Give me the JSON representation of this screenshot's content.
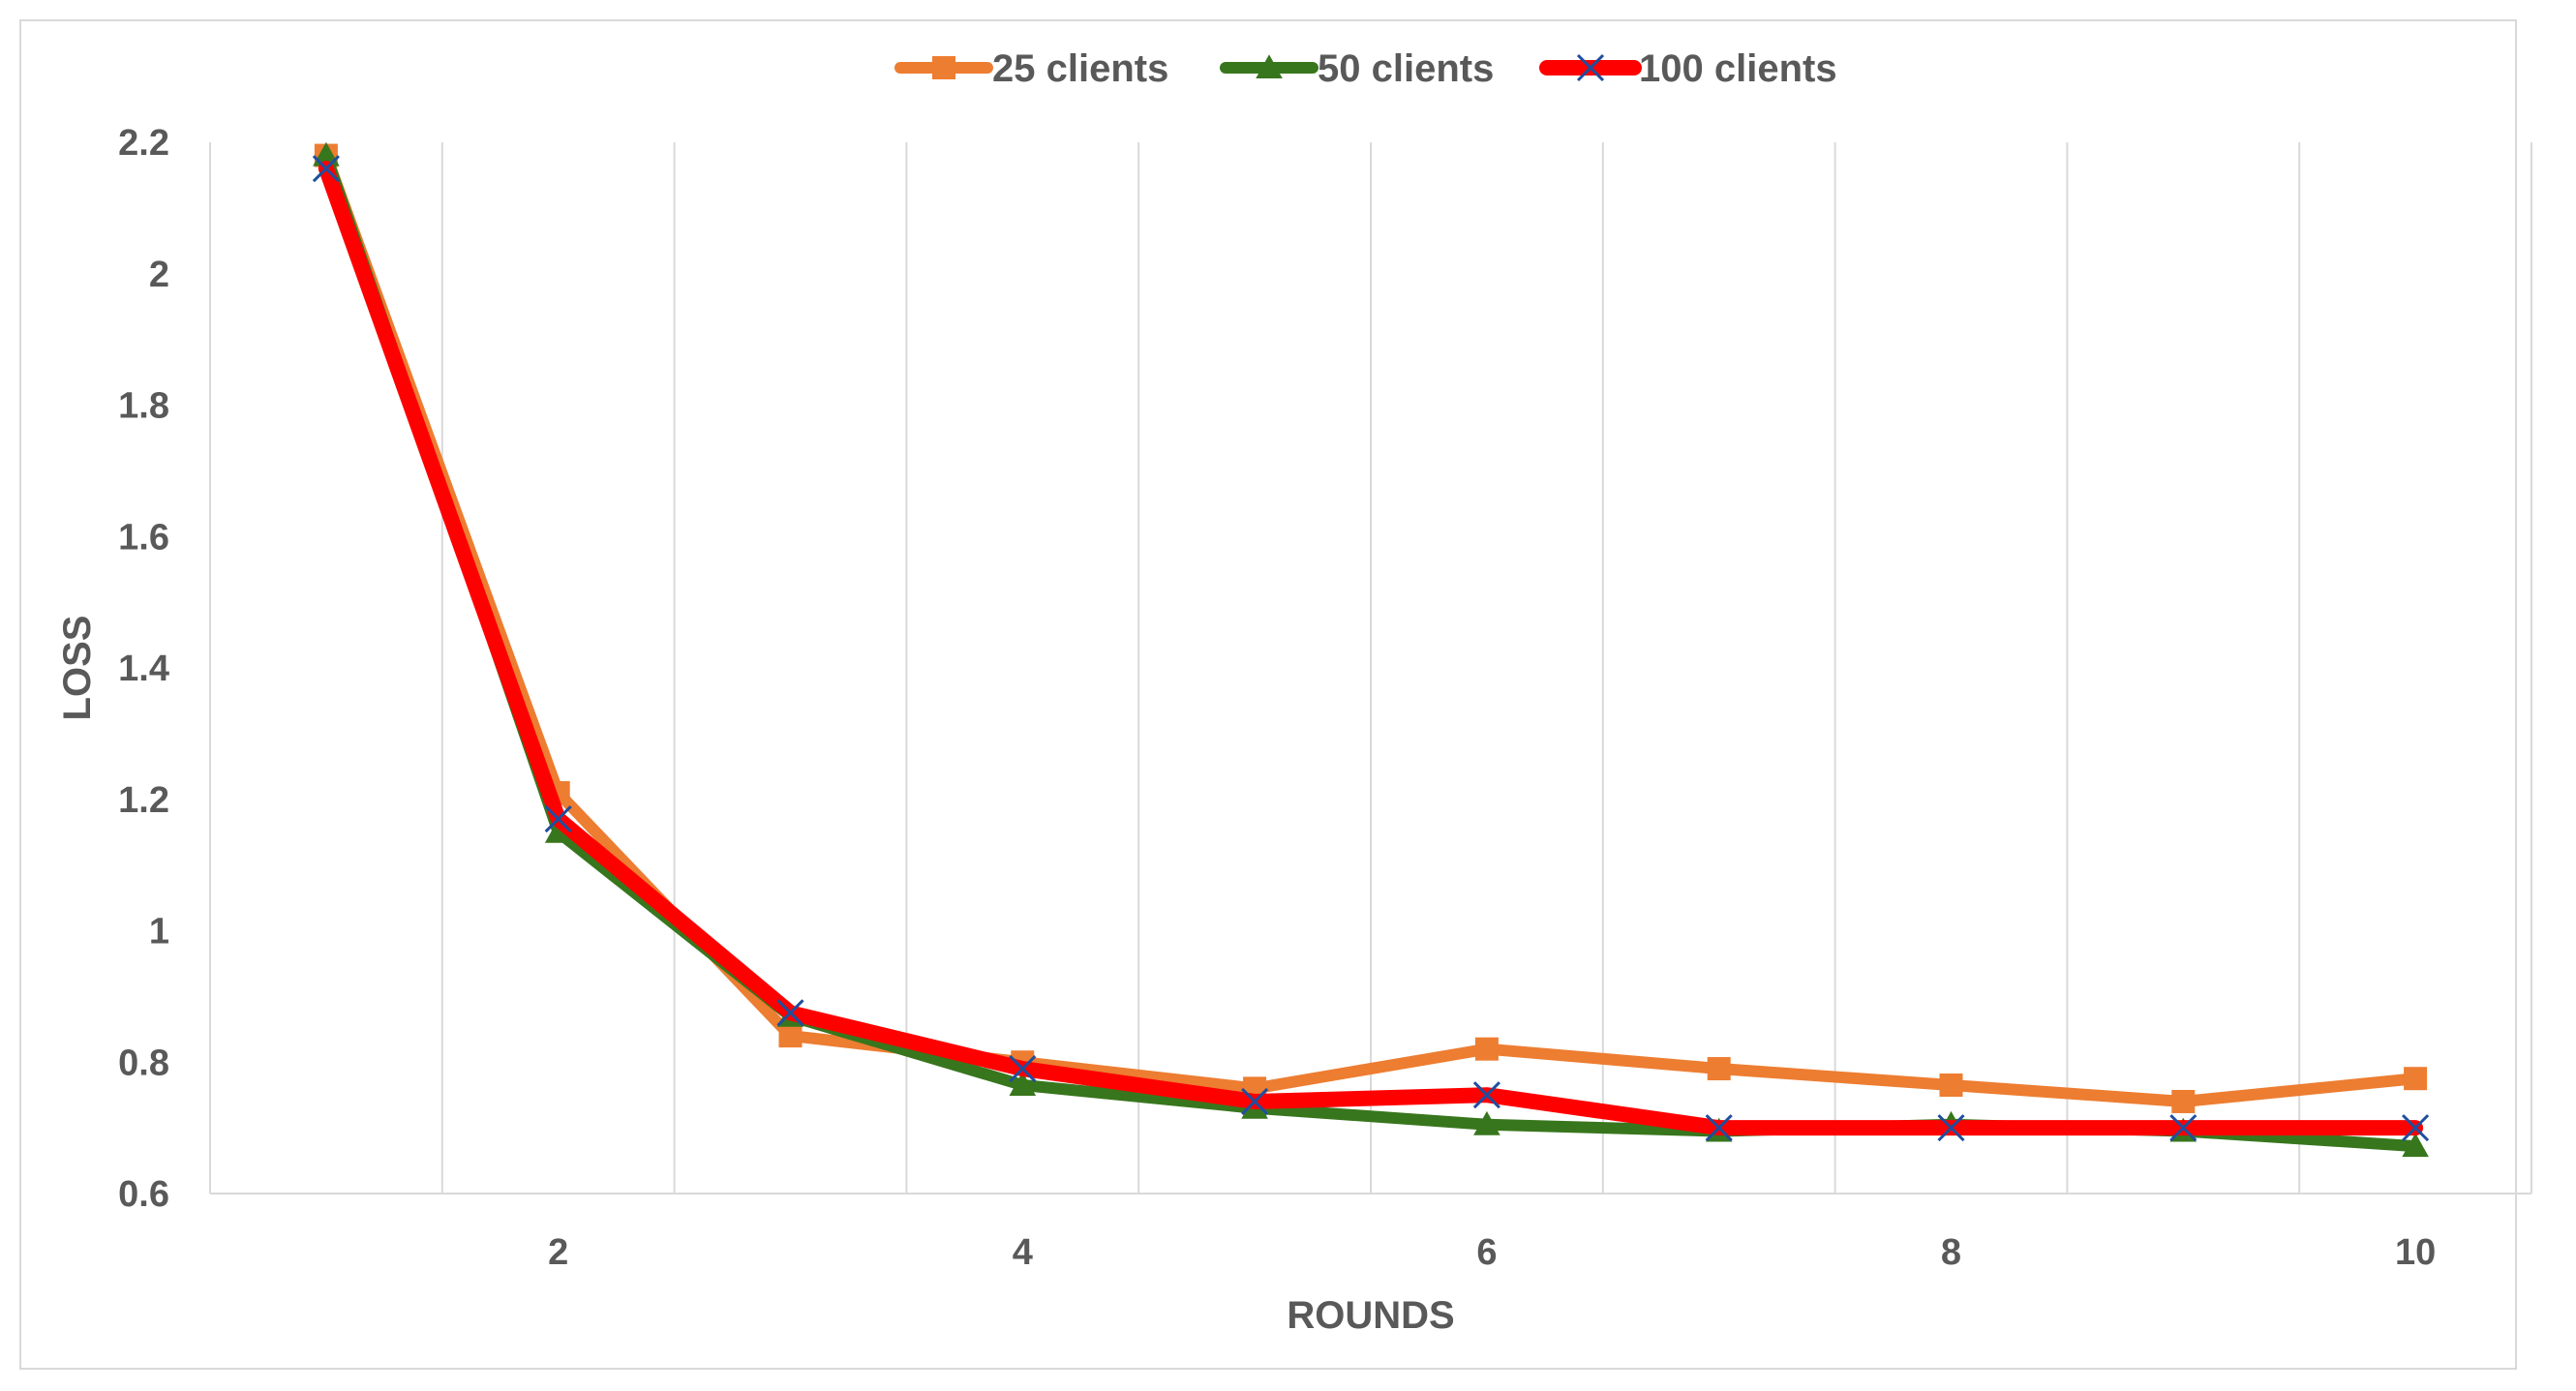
{
  "chart_data": {
    "type": "line",
    "title": "",
    "xlabel": "ROUNDS",
    "ylabel": "LOSS",
    "x": [
      1,
      2,
      3,
      4,
      5,
      6,
      7,
      8,
      9,
      10
    ],
    "xlim": [
      0.5,
      10.5
    ],
    "xticks": [
      2,
      4,
      6,
      8,
      10
    ],
    "ylim": [
      0.6,
      2.2
    ],
    "yticks": [
      0.6,
      0.8,
      1,
      1.2,
      1.4,
      1.6,
      1.8,
      2,
      2.2
    ],
    "grid": "vertical",
    "legend_position": "top-center",
    "series": [
      {
        "name": "25 clients",
        "color": "#ED7D31",
        "marker": "square",
        "values": [
          2.18,
          1.21,
          0.84,
          0.8,
          0.76,
          0.82,
          0.79,
          0.765,
          0.74,
          0.775
        ]
      },
      {
        "name": "50 clients",
        "color": "#38761D",
        "marker": "triangle",
        "values": [
          2.18,
          1.15,
          0.87,
          0.765,
          0.73,
          0.705,
          0.695,
          0.705,
          0.695,
          0.672
        ]
      },
      {
        "name": "100 clients",
        "color": "#FF0000",
        "marker": "x",
        "marker_color": "#1F4E9E",
        "values": [
          2.16,
          1.17,
          0.875,
          0.79,
          0.74,
          0.75,
          0.7,
          0.7,
          0.7,
          0.7
        ]
      }
    ]
  }
}
